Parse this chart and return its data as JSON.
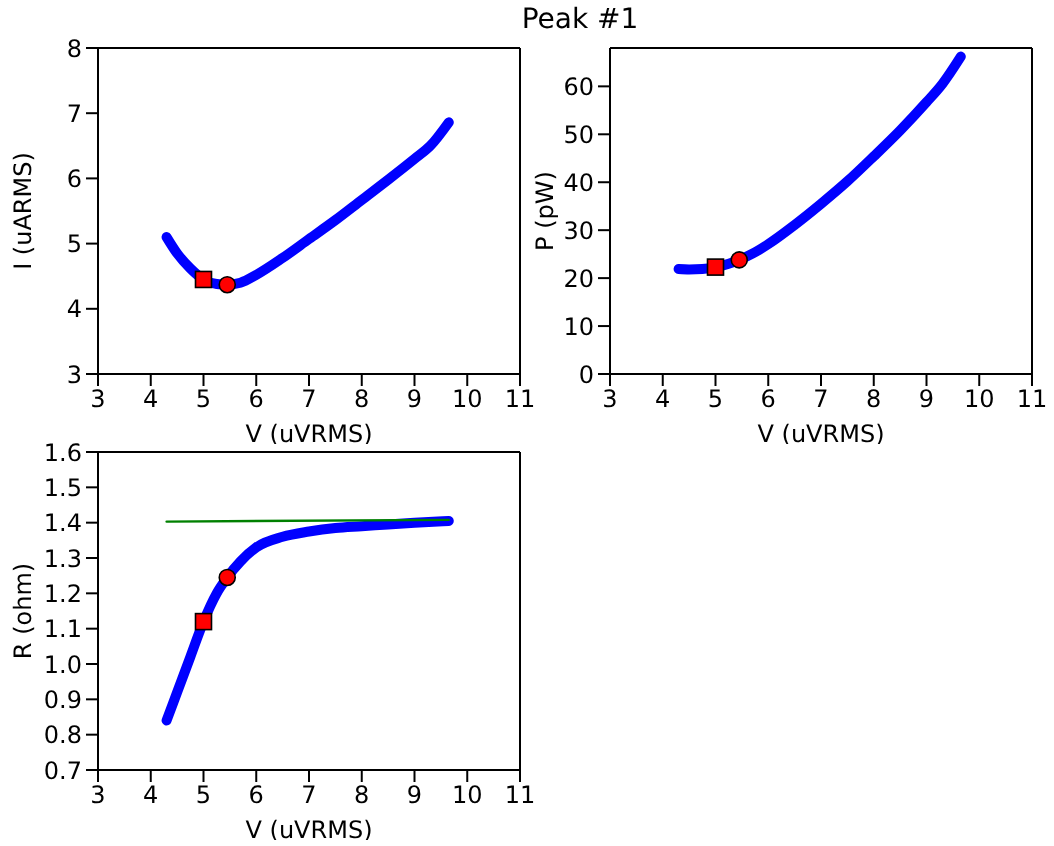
{
  "chart_data": [
    {
      "type": "line",
      "title": "Peak #1",
      "xlabel": "V (uVRMS)",
      "ylabel": "I (uARMS)",
      "xlim": [
        3,
        11
      ],
      "xticks": [
        3,
        4,
        5,
        6,
        7,
        8,
        9,
        10,
        11
      ],
      "ylim": [
        3,
        8
      ],
      "yticks": [
        3,
        4,
        5,
        6,
        7,
        8
      ],
      "grid": false,
      "series": [
        {
          "type": "line",
          "color": "#0000ff",
          "marker": "none",
          "x": [
            4.3,
            4.5,
            4.75,
            5,
            5.25,
            5.45,
            5.7,
            6,
            6.5,
            7,
            7.5,
            8,
            8.5,
            9,
            9.3,
            9.65
          ],
          "values": [
            5.1,
            4.85,
            4.62,
            4.45,
            4.38,
            4.37,
            4.4,
            4.52,
            4.78,
            5.07,
            5.36,
            5.67,
            5.98,
            6.3,
            6.5,
            6.86
          ]
        },
        {
          "type": "scatter",
          "color": "#ff0000",
          "marker": "square",
          "x": [
            5
          ],
          "values": [
            4.45
          ]
        },
        {
          "type": "scatter",
          "color": "#ff0000",
          "marker": "circle",
          "x": [
            5.45
          ],
          "values": [
            4.37
          ]
        }
      ]
    },
    {
      "type": "line",
      "xlabel": "V (uVRMS)",
      "ylabel": "P (pW)",
      "xlim": [
        3,
        11
      ],
      "xticks": [
        3,
        4,
        5,
        6,
        7,
        8,
        9,
        10,
        11
      ],
      "ylim": [
        0,
        68
      ],
      "yticks": [
        0,
        10,
        20,
        30,
        40,
        50,
        60
      ],
      "grid": false,
      "series": [
        {
          "type": "line",
          "color": "#0000ff",
          "marker": "none",
          "x": [
            4.3,
            4.5,
            4.75,
            5,
            5.25,
            5.45,
            5.7,
            6,
            6.5,
            7,
            7.5,
            8,
            8.5,
            9,
            9.3,
            9.65
          ],
          "values": [
            21.9,
            21.8,
            21.9,
            22.3,
            23.0,
            23.8,
            25.1,
            27.1,
            31.1,
            35.5,
            40.2,
            45.4,
            50.8,
            56.7,
            60.5,
            66.2
          ]
        },
        {
          "type": "scatter",
          "color": "#ff0000",
          "marker": "square",
          "x": [
            5
          ],
          "values": [
            22.3
          ]
        },
        {
          "type": "scatter",
          "color": "#ff0000",
          "marker": "circle",
          "x": [
            5.45
          ],
          "values": [
            23.8
          ]
        }
      ]
    },
    {
      "type": "line",
      "xlabel": "V (uVRMS)",
      "ylabel": "R (ohm)",
      "xlim": [
        3,
        11
      ],
      "xticks": [
        3,
        4,
        5,
        6,
        7,
        8,
        9,
        10,
        11
      ],
      "ylim": [
        0.7,
        1.6
      ],
      "yticks": [
        0.7,
        0.8,
        0.9,
        {
          "value": 1,
          "label": "1.0"
        },
        1.1,
        1.2,
        1.3,
        1.4,
        1.5,
        1.6
      ],
      "grid": false,
      "series": [
        {
          "type": "line",
          "color": "#0000ff",
          "marker": "none",
          "x": [
            4.3,
            4.5,
            4.75,
            5,
            5.25,
            5.45,
            5.7,
            6,
            6.5,
            7,
            7.5,
            8,
            8.5,
            9,
            9.65
          ],
          "values": [
            0.84,
            0.92,
            1.02,
            1.12,
            1.2,
            1.245,
            1.29,
            1.33,
            1.36,
            1.375,
            1.385,
            1.39,
            1.395,
            1.4,
            1.405
          ]
        },
        {
          "type": "line",
          "color": "#008000",
          "marker": "none",
          "x": [
            4.3,
            9.65
          ],
          "values": [
            1.403,
            1.408
          ]
        },
        {
          "type": "scatter",
          "color": "#ff0000",
          "marker": "square",
          "x": [
            5
          ],
          "values": [
            1.12
          ]
        },
        {
          "type": "scatter",
          "color": "#ff0000",
          "marker": "circle",
          "x": [
            5.45
          ],
          "values": [
            1.245
          ]
        }
      ]
    }
  ]
}
